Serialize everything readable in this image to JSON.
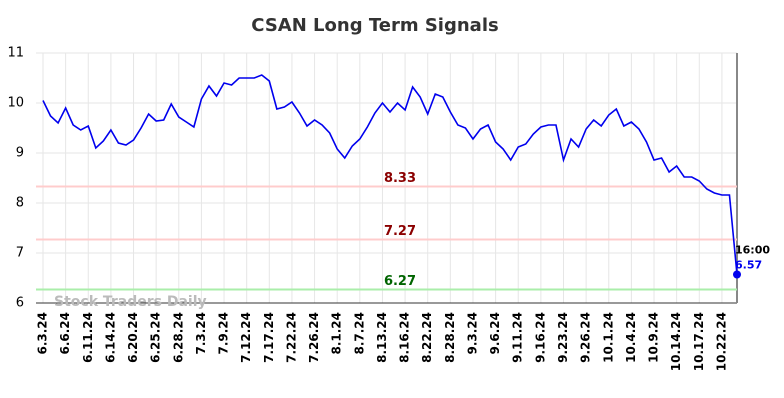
{
  "chart_data": {
    "type": "line",
    "title": "CSAN Long Term Signals",
    "categories": [
      "6.3.24",
      null,
      null,
      "6.6.24",
      null,
      null,
      "6.11.24",
      null,
      null,
      "6.14.24",
      null,
      null,
      "6.20.24",
      null,
      null,
      "6.25.24",
      null,
      null,
      "6.28.24",
      null,
      null,
      "7.3.24",
      null,
      null,
      "7.9.24",
      null,
      null,
      "7.12.24",
      null,
      null,
      "7.17.24",
      null,
      null,
      "7.22.24",
      null,
      null,
      "7.26.24",
      null,
      null,
      "8.1.24",
      null,
      null,
      "8.7.24",
      null,
      null,
      "8.13.24",
      null,
      null,
      "8.16.24",
      null,
      null,
      "8.22.24",
      null,
      null,
      "8.28.24",
      null,
      null,
      "9.3.24",
      null,
      null,
      "9.6.24",
      null,
      null,
      "9.11.24",
      null,
      null,
      "9.16.24",
      null,
      null,
      "9.23.24",
      null,
      null,
      "9.26.24",
      null,
      null,
      "10.1.24",
      null,
      null,
      "10.4.24",
      null,
      null,
      "10.9.24",
      null,
      null,
      "10.14.24",
      null,
      null,
      "10.17.24",
      null,
      null,
      "10.22.24",
      null,
      null
    ],
    "series": [
      {
        "color": "#0000ee",
        "values": [
          10.05,
          9.74,
          9.6,
          9.9,
          9.56,
          9.46,
          9.54,
          9.1,
          9.24,
          9.46,
          9.2,
          9.16,
          9.26,
          9.5,
          9.78,
          9.64,
          9.66,
          9.98,
          9.72,
          9.62,
          9.52,
          10.08,
          10.34,
          10.14,
          10.4,
          10.36,
          10.5,
          10.5,
          10.5,
          10.56,
          10.44,
          9.88,
          9.92,
          10.02,
          9.8,
          9.54,
          9.66,
          9.56,
          9.4,
          9.08,
          8.9,
          9.14,
          9.28,
          9.52,
          9.8,
          10.0,
          9.82,
          10.0,
          9.86,
          10.32,
          10.12,
          9.78,
          10.18,
          10.12,
          9.82,
          9.56,
          9.5,
          9.28,
          9.48,
          9.56,
          9.22,
          9.08,
          8.86,
          9.12,
          9.18,
          9.38,
          9.52,
          9.56,
          9.56,
          8.86,
          9.28,
          9.12,
          9.48,
          9.66,
          9.54,
          9.76,
          9.88,
          9.54,
          9.62,
          9.48,
          9.22,
          8.86,
          8.9,
          8.62,
          8.74,
          8.52,
          8.52,
          8.44,
          8.28,
          8.2,
          8.16,
          8.16,
          6.57
        ]
      }
    ],
    "signals": [
      {
        "value": 8.33,
        "color": "#ffcccc",
        "label_color": "#8b0000"
      },
      {
        "value": 7.27,
        "color": "#ffcccc",
        "label_color": "#8b0000"
      },
      {
        "value": 6.27,
        "color": "#aaeeaa",
        "label_color": "#006400"
      }
    ],
    "last_time": "16:00",
    "watermark": "Stock Traders Daily",
    "ylim": [
      6,
      11
    ],
    "yticks": [
      6,
      7,
      8,
      9,
      10,
      11
    ],
    "grid": true
  }
}
